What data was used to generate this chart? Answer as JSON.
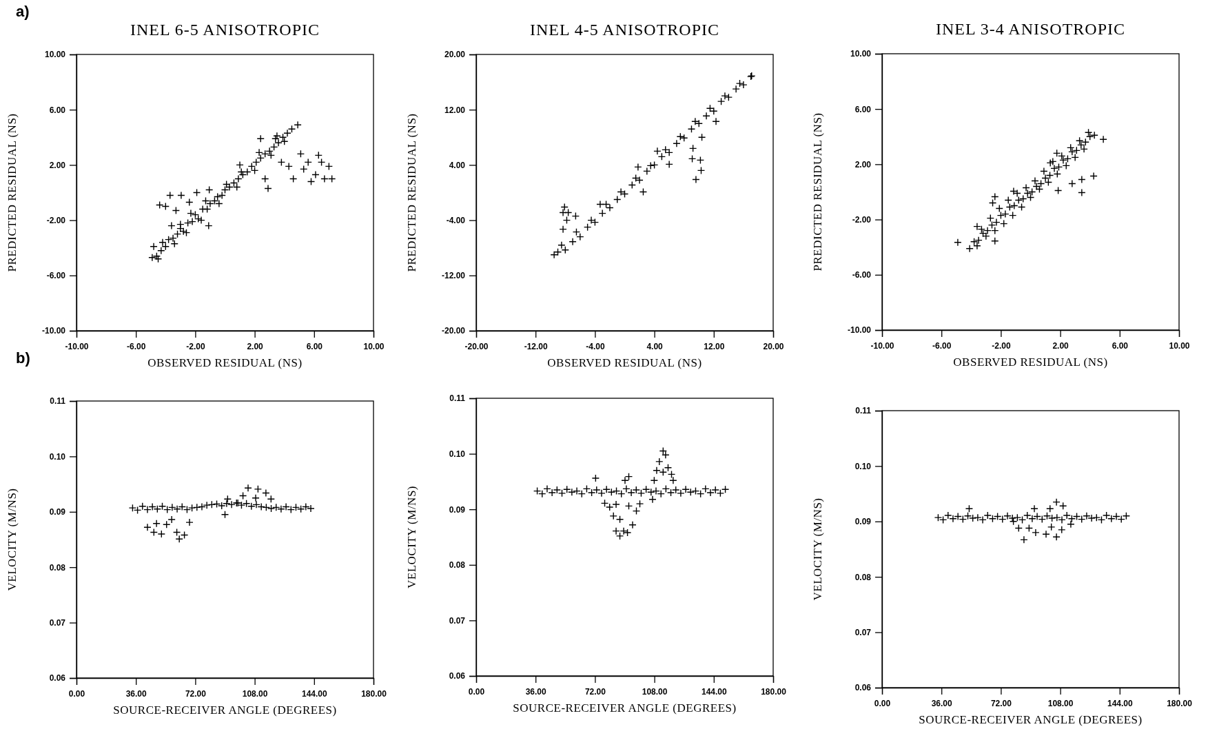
{
  "chart_data": [
    {
      "type": "scatter",
      "title": "INEL 6-5 ANISOTROPIC",
      "xlabel": "OBSERVED RESIDUAL (NS)",
      "ylabel": "PREDICTED RESIDUAL (NS)",
      "annotations": [
        "a)"
      ],
      "marker": "cross",
      "grid": false,
      "color": "#000000",
      "xlim": [
        -10,
        10
      ],
      "ylim": [
        -10,
        10
      ],
      "xticks": [
        {
          "value": -10,
          "label": "-10.00"
        },
        {
          "value": -6,
          "label": "-6.00"
        },
        {
          "value": -2,
          "label": "-2.00"
        },
        {
          "value": 2,
          "label": "2.00"
        },
        {
          "value": 6,
          "label": "6.00"
        },
        {
          "value": 10,
          "label": "10.00"
        }
      ],
      "yticks": [
        {
          "value": -10,
          "label": "-10.00"
        },
        {
          "value": -6,
          "label": "-6.00"
        },
        {
          "value": -2,
          "label": "-2.00"
        },
        {
          "value": 2,
          "label": "2.00"
        },
        {
          "value": 6,
          "label": "6.00"
        },
        {
          "value": 10,
          "label": "10.00"
        }
      ],
      "x": [
        -4.9,
        -4.6,
        -4.3,
        -4.0,
        -3.8,
        -3.5,
        -3.2,
        -3.0,
        -2.8,
        -2.5,
        -2.2,
        -2.0,
        -1.8,
        -1.5,
        -1.2,
        -1.0,
        -0.7,
        -0.5,
        -0.2,
        0.0,
        0.3,
        0.6,
        0.9,
        1.2,
        1.5,
        1.8,
        2.1,
        2.4,
        2.7,
        3.0,
        3.3,
        3.6,
        3.9,
        4.2,
        4.5,
        4.9,
        -1.1,
        2.9,
        2.7,
        -4.8,
        -3.7,
        -2.95,
        -4.4,
        -4.0,
        -1.9,
        -1.06,
        -3.3,
        -2.4,
        -3.6,
        5.1,
        5.3,
        6.3,
        6.5,
        7.0,
        7.2,
        6.7,
        5.8,
        4.6,
        4.3,
        5.6,
        6.1,
        2.4,
        3.5,
        3.8,
        1.0,
        -4.5,
        -3.4,
        -2.6,
        -1.6,
        -0.4,
        0.8,
        2.0,
        3.1,
        4.0,
        -4.2,
        -3.0,
        -2.3,
        -1.3,
        0.1,
        1.1,
        2.3,
        3.4
      ],
      "values": [
        -4.7,
        -4.6,
        -4.2,
        -3.9,
        -3.4,
        -3.3,
        -3.0,
        -2.6,
        -2.8,
        -2.2,
        -2.1,
        -1.6,
        -1.9,
        -1.2,
        -1.2,
        -0.8,
        -0.6,
        -0.3,
        -0.2,
        0.2,
        0.4,
        0.7,
        1.0,
        1.3,
        1.5,
        1.9,
        2.2,
        2.5,
        2.8,
        3.0,
        3.3,
        3.6,
        4.0,
        4.3,
        4.6,
        4.9,
        -2.4,
        0.3,
        1.0,
        -3.9,
        -0.2,
        -0.2,
        -0.9,
        -1.0,
        0.0,
        0.2,
        -1.3,
        -0.7,
        -2.4,
        2.8,
        1.7,
        2.7,
        2.2,
        1.9,
        1.0,
        1.0,
        0.8,
        1.0,
        1.9,
        2.2,
        1.3,
        3.9,
        4.1,
        2.2,
        2.0,
        -4.8,
        -3.7,
        -2.9,
        -2.0,
        -0.8,
        0.4,
        1.6,
        2.7,
        3.7,
        -3.6,
        -2.3,
        -1.5,
        -0.6,
        0.6,
        1.5,
        2.9,
        3.9
      ]
    },
    {
      "type": "scatter",
      "title": "INEL 4-5 ANISOTROPIC",
      "xlabel": "OBSERVED RESIDUAL (NS)",
      "ylabel": "PREDICTED RESIDUAL (NS)",
      "marker": "cross",
      "grid": false,
      "color": "#000000",
      "xlim": [
        -20,
        20
      ],
      "ylim": [
        -20,
        20
      ],
      "xticks": [
        {
          "value": -20,
          "label": "-20.00"
        },
        {
          "value": -12,
          "label": "-12.00"
        },
        {
          "value": -4,
          "label": "-4.00"
        },
        {
          "value": 4,
          "label": "4.00"
        },
        {
          "value": 12,
          "label": "12.00"
        },
        {
          "value": 20,
          "label": "20.00"
        }
      ],
      "yticks": [
        {
          "value": -20,
          "label": "-20.00"
        },
        {
          "value": -12,
          "label": "-12.00"
        },
        {
          "value": -4,
          "label": "-4.00"
        },
        {
          "value": 4,
          "label": "4.00"
        },
        {
          "value": 12,
          "label": "12.00"
        },
        {
          "value": 20,
          "label": "20.00"
        }
      ],
      "x": [
        -9,
        -8,
        -7,
        -6,
        -5,
        -4,
        -3,
        -2,
        -1,
        0,
        1,
        2,
        3,
        4,
        5,
        6,
        7,
        8,
        9,
        10,
        11,
        12,
        13,
        14,
        15,
        16,
        17,
        -8.5,
        -6.5,
        -4.5,
        -2.5,
        -0.5,
        1.5,
        3.5,
        5.5,
        7.5,
        9.5,
        11.5,
        13.5,
        15.5,
        -8.1,
        -8.3,
        -7.6,
        -6.6,
        -7.8,
        -8.3,
        -9.5,
        -3.3,
        1.8,
        2.5,
        4.4,
        9.2,
        9.1,
        10.2,
        10.3,
        9.6,
        10.4,
        6.0,
        12.3,
        17.1
      ],
      "values": [
        -8.6,
        -8.3,
        -7.1,
        -6.4,
        -5.0,
        -4.3,
        -3.0,
        -2.2,
        -1.0,
        -0.2,
        1.1,
        1.8,
        3.1,
        4.0,
        5.2,
        5.8,
        7.1,
        7.9,
        9.2,
        10.0,
        11.1,
        11.8,
        13.2,
        13.8,
        15.0,
        15.6,
        16.8,
        -7.6,
        -5.7,
        -4.0,
        -1.7,
        0.1,
        2.1,
        3.9,
        6.2,
        8.1,
        10.3,
        12.2,
        14.0,
        15.8,
        -2.1,
        -2.9,
        -2.9,
        -3.4,
        -4.0,
        -5.3,
        -9.0,
        -1.7,
        3.7,
        0.1,
        6.0,
        6.4,
        4.9,
        4.7,
        3.2,
        1.9,
        8.0,
        4.1,
        10.3,
        16.9
      ]
    },
    {
      "type": "scatter",
      "title": "INEL 3-4 ANISOTROPIC",
      "xlabel": "OBSERVED RESIDUAL (NS)",
      "ylabel": "PREDICTED RESIDUAL (NS)",
      "marker": "cross",
      "grid": false,
      "color": "#000000",
      "xlim": [
        -10,
        10
      ],
      "ylim": [
        -10,
        10
      ],
      "xticks": [
        {
          "value": -10,
          "label": "-10.00"
        },
        {
          "value": -6,
          "label": "-6.00"
        },
        {
          "value": -2,
          "label": "-2.00"
        },
        {
          "value": 2,
          "label": "2.00"
        },
        {
          "value": 6,
          "label": "6.00"
        },
        {
          "value": 10,
          "label": "10.00"
        }
      ],
      "yticks": [
        {
          "value": -10,
          "label": "-10.00"
        },
        {
          "value": -6,
          "label": "-6.00"
        },
        {
          "value": -2,
          "label": "-2.00"
        },
        {
          "value": 2,
          "label": "2.00"
        },
        {
          "value": 6,
          "label": "6.00"
        },
        {
          "value": 10,
          "label": "10.00"
        }
      ],
      "x": [
        -4.1,
        -3.8,
        -3.5,
        -3.2,
        -2.9,
        -2.6,
        -2.3,
        -2.0,
        -1.7,
        -1.4,
        -1.1,
        -0.8,
        -0.5,
        -0.2,
        0.1,
        0.4,
        0.7,
        1.0,
        1.3,
        1.6,
        1.9,
        2.2,
        2.5,
        2.8,
        3.1,
        3.4,
        3.7,
        4.0,
        4.3,
        -3.6,
        -3.0,
        -2.4,
        -1.8,
        -1.2,
        -0.6,
        0.0,
        0.6,
        1.2,
        1.8,
        2.4,
        3.0,
        3.6,
        -3.3,
        -2.7,
        -2.1,
        -1.5,
        -0.9,
        -0.3,
        0.3,
        0.9,
        1.5,
        2.1,
        2.7,
        3.3,
        3.9,
        -4.9,
        -2.4,
        -2.55,
        -2.4,
        -3.6,
        4.25,
        3.45,
        3.45,
        2.8,
        1.86,
        1.33,
        1.77,
        -1.14,
        4.9
      ],
      "values": [
        -4.1,
        -3.6,
        -3.5,
        -3.0,
        -2.8,
        -2.4,
        -2.2,
        -1.7,
        -1.6,
        -1.1,
        -1.0,
        -0.6,
        -0.5,
        -0.1,
        0.0,
        0.4,
        0.6,
        1.0,
        1.2,
        1.7,
        1.8,
        2.3,
        2.4,
        2.9,
        3.0,
        3.4,
        3.6,
        4.0,
        4.1,
        -3.9,
        -3.2,
        -2.8,
        -2.3,
        -1.7,
        -1.1,
        -0.4,
        0.2,
        0.7,
        1.3,
        1.9,
        2.5,
        3.1,
        -2.7,
        -1.9,
        -1.2,
        -0.6,
        -0.1,
        0.3,
        0.8,
        1.5,
        2.2,
        2.6,
        3.2,
        3.7,
        4.3,
        -3.65,
        -0.35,
        -0.8,
        -3.55,
        -2.5,
        1.15,
        -0.05,
        0.9,
        0.6,
        0.1,
        2.1,
        2.8,
        0.05,
        3.8
      ]
    },
    {
      "type": "scatter",
      "xlabel": "SOURCE-RECEIVER ANGLE (DEGREES)",
      "ylabel": "VELOCITY (M/NS)",
      "annotations": [
        "b)"
      ],
      "marker": "cross",
      "grid": false,
      "color": "#000000",
      "xlim": [
        0,
        180
      ],
      "ylim": [
        0.06,
        0.11
      ],
      "xticks": [
        {
          "value": 0,
          "label": "0.00"
        },
        {
          "value": 36,
          "label": "36.00"
        },
        {
          "value": 72,
          "label": "72.00"
        },
        {
          "value": 108,
          "label": "108.00"
        },
        {
          "value": 144,
          "label": "144.00"
        },
        {
          "value": 180,
          "label": "180.00"
        }
      ],
      "yticks": [
        0.06,
        0.07,
        0.08,
        0.09,
        {
          "value": 0.1,
          "label": "0.10"
        },
        0.11
      ],
      "x": [
        34,
        37,
        40,
        43,
        46,
        49,
        52,
        55,
        58,
        61,
        64,
        67,
        70,
        73,
        76,
        79,
        82,
        85,
        88,
        91,
        94,
        97,
        100,
        103,
        106,
        109,
        112,
        115,
        118,
        121,
        124,
        127,
        130,
        133,
        136,
        139,
        142,
        62.3,
        60.8,
        65.4,
        46.9,
        43,
        51.5,
        54.6,
        57.7,
        68.5,
        48.5,
        104,
        110,
        114.8,
        100.9,
        117.9,
        91.6,
        90,
        97.8,
        108.6
      ],
      "values": [
        0.0907,
        0.0903,
        0.091,
        0.0904,
        0.0909,
        0.0905,
        0.091,
        0.0904,
        0.0908,
        0.0905,
        0.0909,
        0.0904,
        0.0907,
        0.0908,
        0.0909,
        0.0912,
        0.0913,
        0.0914,
        0.0911,
        0.0915,
        0.0913,
        0.0916,
        0.0912,
        0.0915,
        0.091,
        0.0913,
        0.0909,
        0.0908,
        0.0906,
        0.0908,
        0.0905,
        0.0909,
        0.0904,
        0.0908,
        0.0905,
        0.0909,
        0.0906,
        0.0851,
        0.0863,
        0.0858,
        0.0863,
        0.0872,
        0.086,
        0.0877,
        0.0886,
        0.0881,
        0.0879,
        0.0943,
        0.0941,
        0.0934,
        0.0929,
        0.0923,
        0.0923,
        0.0895,
        0.0916,
        0.0925
      ]
    },
    {
      "type": "scatter",
      "xlabel": "SOURCE-RECEIVER ANGLE (DEGREES)",
      "ylabel": "VELOCITY (M/NS)",
      "marker": "cross",
      "grid": false,
      "color": "#000000",
      "xlim": [
        0,
        180
      ],
      "ylim": [
        0.06,
        0.11
      ],
      "xticks": [
        {
          "value": 0,
          "label": "0.00"
        },
        {
          "value": 36,
          "label": "36.00"
        },
        {
          "value": 72,
          "label": "72.00"
        },
        {
          "value": 108,
          "label": "108.00"
        },
        {
          "value": 144,
          "label": "144.00"
        },
        {
          "value": 180,
          "label": "180.00"
        }
      ],
      "yticks": [
        0.06,
        0.07,
        0.08,
        0.09,
        {
          "value": 0.1,
          "label": "0.10"
        },
        0.11
      ],
      "x": [
        37,
        40,
        43,
        46,
        49,
        52,
        55,
        58,
        61,
        64,
        67,
        70,
        73,
        76,
        79,
        82,
        85,
        88,
        91,
        94,
        97,
        100,
        103,
        106,
        109,
        112,
        115,
        118,
        121,
        124,
        127,
        130,
        133,
        136,
        139,
        142,
        145,
        148,
        151,
        113.3,
        114.8,
        111,
        109.4,
        113.3,
        116.3,
        118.4,
        107.9,
        119.4,
        72.4,
        92.5,
        90.2,
        83.2,
        87.1,
        84.8,
        87.1,
        89.4,
        91.7,
        94.8,
        97.1,
        92.5,
        80.9,
        77.9,
        84.8,
        99.2,
        106.9
      ],
      "values": [
        0.0933,
        0.0928,
        0.0937,
        0.093,
        0.0935,
        0.0929,
        0.0936,
        0.0931,
        0.0933,
        0.0928,
        0.0937,
        0.093,
        0.0935,
        0.0929,
        0.0936,
        0.0931,
        0.0933,
        0.0928,
        0.0937,
        0.093,
        0.0935,
        0.0929,
        0.0936,
        0.0931,
        0.0933,
        0.0928,
        0.0937,
        0.093,
        0.0935,
        0.0929,
        0.0936,
        0.0931,
        0.0933,
        0.0928,
        0.0937,
        0.093,
        0.0935,
        0.0929,
        0.0936,
        0.1005,
        0.0998,
        0.0986,
        0.097,
        0.0967,
        0.0975,
        0.0963,
        0.0952,
        0.0952,
        0.0956,
        0.0959,
        0.0952,
        0.0888,
        0.0882,
        0.0861,
        0.0852,
        0.0861,
        0.0858,
        0.0872,
        0.0897,
        0.0906,
        0.0904,
        0.0911,
        0.0909,
        0.091,
        0.0918
      ]
    },
    {
      "type": "scatter",
      "xlabel": "SOURCE-RECEIVER ANGLE (DEGREES)",
      "ylabel": "VELOCITY (M/NS)",
      "marker": "cross",
      "grid": false,
      "color": "#000000",
      "xlim": [
        0,
        180
      ],
      "ylim": [
        0.06,
        0.11
      ],
      "xticks": [
        {
          "value": 0,
          "label": "0.00"
        },
        {
          "value": 36,
          "label": "36.00"
        },
        {
          "value": 72,
          "label": "72.00"
        },
        {
          "value": 108,
          "label": "108.00"
        },
        {
          "value": 144,
          "label": "144.00"
        },
        {
          "value": 180,
          "label": "180.00"
        }
      ],
      "yticks": [
        0.06,
        0.07,
        0.08,
        0.09,
        {
          "value": 0.1,
          "label": "0.10"
        },
        0.11
      ],
      "x": [
        34,
        37,
        40,
        43,
        46,
        49,
        52,
        55,
        58,
        61,
        64,
        67,
        70,
        73,
        76,
        79,
        82,
        85,
        88,
        91,
        94,
        97,
        100,
        103,
        106,
        109,
        112,
        115,
        118,
        121,
        124,
        127,
        130,
        133,
        136,
        139,
        142,
        145,
        148,
        86,
        93.1,
        99.4,
        105.7,
        108.9,
        105.7,
        109.7,
        101.8,
        92.3,
        79.6,
        82.8,
        89.1,
        102.6,
        114.4,
        52.8
      ],
      "values": [
        0.0907,
        0.0903,
        0.0911,
        0.0905,
        0.0909,
        0.0904,
        0.091,
        0.0906,
        0.0907,
        0.0903,
        0.0911,
        0.0905,
        0.0909,
        0.0904,
        0.091,
        0.0906,
        0.0907,
        0.0903,
        0.0911,
        0.0905,
        0.0909,
        0.0904,
        0.091,
        0.0906,
        0.0907,
        0.0903,
        0.0911,
        0.0905,
        0.0909,
        0.0904,
        0.091,
        0.0906,
        0.0907,
        0.0903,
        0.0911,
        0.0905,
        0.0909,
        0.0904,
        0.091,
        0.0867,
        0.088,
        0.0877,
        0.0872,
        0.0885,
        0.0935,
        0.0928,
        0.0923,
        0.0923,
        0.09,
        0.0888,
        0.0888,
        0.089,
        0.0895,
        0.0923
      ]
    }
  ]
}
